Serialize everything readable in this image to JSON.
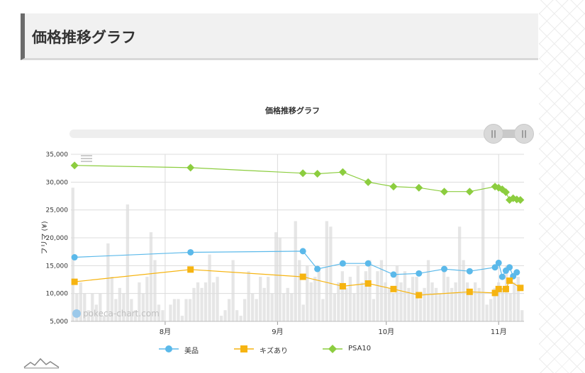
{
  "page": {
    "heading": "価格推移グラフ"
  },
  "chart_data": {
    "type": "line",
    "title": "価格推移グラフ",
    "ylabel": "フリマ (¥)",
    "xlabel": "",
    "ylim": [
      5000,
      35000
    ],
    "yticks": [
      5000,
      10000,
      15000,
      20000,
      25000,
      30000,
      35000
    ],
    "ytick_labels": [
      "5,000",
      "10,000",
      "15,000",
      "20,000",
      "25,000",
      "30,000",
      "35,000"
    ],
    "xlim": [
      "2024-07-06",
      "2024-11-08"
    ],
    "xticks": [
      "2024-08-01",
      "2024-09-01",
      "2024-10-01",
      "2024-11-01"
    ],
    "xtick_labels": [
      "8月",
      "9月",
      "10月",
      "11月"
    ],
    "grid": true,
    "legend_position": "bottom",
    "watermark": "pokeca-chart.com",
    "series": [
      {
        "name": "美品",
        "color": "#5bb9ea",
        "marker": "circle",
        "points": [
          [
            "2024-07-07",
            16500
          ],
          [
            "2024-08-08",
            17400
          ],
          [
            "2024-09-08",
            17600
          ],
          [
            "2024-09-12",
            14400
          ],
          [
            "2024-09-19",
            15400
          ],
          [
            "2024-09-26",
            15400
          ],
          [
            "2024-10-03",
            13400
          ],
          [
            "2024-10-10",
            13600
          ],
          [
            "2024-10-17",
            14400
          ],
          [
            "2024-10-24",
            14000
          ],
          [
            "2024-10-31",
            14700
          ],
          [
            "2024-11-01",
            15500
          ],
          [
            "2024-11-02",
            13000
          ],
          [
            "2024-11-03",
            14100
          ],
          [
            "2024-11-04",
            14700
          ],
          [
            "2024-11-05",
            13100
          ],
          [
            "2024-11-06",
            13800
          ]
        ]
      },
      {
        "name": "キズあり",
        "color": "#f6b411",
        "marker": "square",
        "points": [
          [
            "2024-07-07",
            12100
          ],
          [
            "2024-08-08",
            14300
          ],
          [
            "2024-09-08",
            13000
          ],
          [
            "2024-09-19",
            11300
          ],
          [
            "2024-09-26",
            11800
          ],
          [
            "2024-10-03",
            10800
          ],
          [
            "2024-10-10",
            9700
          ],
          [
            "2024-10-24",
            10300
          ],
          [
            "2024-10-31",
            10100
          ],
          [
            "2024-11-01",
            10800
          ],
          [
            "2024-11-03",
            10800
          ],
          [
            "2024-11-04",
            12300
          ],
          [
            "2024-11-07",
            11000
          ]
        ]
      },
      {
        "name": "PSA10",
        "color": "#8ccd3f",
        "marker": "diamond",
        "points": [
          [
            "2024-07-07",
            33000
          ],
          [
            "2024-08-08",
            32600
          ],
          [
            "2024-09-08",
            31600
          ],
          [
            "2024-09-12",
            31500
          ],
          [
            "2024-09-19",
            31800
          ],
          [
            "2024-09-26",
            30000
          ],
          [
            "2024-10-03",
            29200
          ],
          [
            "2024-10-10",
            29000
          ],
          [
            "2024-10-17",
            28300
          ],
          [
            "2024-10-24",
            28300
          ],
          [
            "2024-10-31",
            29200
          ],
          [
            "2024-11-01",
            29000
          ],
          [
            "2024-11-02",
            28700
          ],
          [
            "2024-11-03",
            28200
          ],
          [
            "2024-11-04",
            26800
          ],
          [
            "2024-11-05",
            27100
          ],
          [
            "2024-11-06",
            26900
          ],
          [
            "2024-11-07",
            26800
          ]
        ]
      }
    ],
    "volume_bars": {
      "color": "#e6e6e6",
      "values": [
        29000,
        10000,
        12000,
        10000,
        7000,
        10000,
        8000,
        10000,
        6000,
        19000,
        13000,
        9000,
        11000,
        10000,
        26000,
        9000,
        7000,
        12000,
        10000,
        13000,
        21000,
        16000,
        8000,
        7000,
        5000,
        8000,
        9000,
        9000,
        6000,
        9000,
        9000,
        11000,
        12000,
        11000,
        12000,
        17000,
        12000,
        13000,
        6000,
        7000,
        9000,
        16000,
        7000,
        6000,
        9000,
        14000,
        10000,
        9000,
        13000,
        11000,
        13000,
        10000,
        21000,
        20000,
        10000,
        11000,
        10000,
        23000,
        16000,
        8000,
        15000,
        12000,
        13000,
        14000,
        9000,
        23000,
        22000,
        10000,
        12000,
        14000,
        11000,
        13000,
        10000,
        15000,
        12000,
        14000,
        16000,
        9000,
        14000,
        16000,
        12000,
        11000,
        10000,
        15000,
        12000,
        14000,
        11000,
        13000,
        13000,
        9000,
        11000,
        16000,
        12000,
        11000,
        10000,
        14000,
        13000,
        11000,
        12000,
        22000,
        16000,
        12000,
        10000,
        12000,
        11000,
        30000,
        8000,
        9000,
        11000,
        12000,
        11000,
        15000,
        10000,
        12000,
        13000,
        7000
      ]
    }
  }
}
